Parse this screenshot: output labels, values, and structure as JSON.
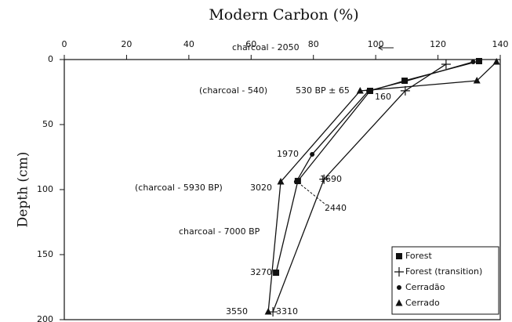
{
  "chart_data": {
    "type": "line",
    "title": "Modern Carbon (%)",
    "y_label": "Depth (cm)",
    "xlim": [
      0,
      140
    ],
    "xticks": [
      0,
      20,
      40,
      60,
      80,
      100,
      120,
      140
    ],
    "ylim": [
      0,
      200
    ],
    "yticks": [
      0,
      50,
      100,
      150,
      200
    ],
    "y_inverted": true,
    "x_axis_position": "top",
    "legend": "lower right",
    "series": [
      {
        "name": "Forest",
        "color": "#111111",
        "marker": "square",
        "x": [
          133.2,
          109.3,
          98.2,
          75,
          68
        ],
        "values": [
          1.2,
          16.3,
          24.1,
          93.4,
          163.9
        ]
      },
      {
        "name": "Forest (transition)",
        "color": "#111111",
        "marker": "plus",
        "x": [
          122.6,
          109.5,
          83.4,
          67
        ],
        "values": [
          3.6,
          24,
          92,
          194
        ]
      },
      {
        "name": "Cerradão",
        "color": "#111111",
        "marker": "circle",
        "x": [
          131.3,
          109.3,
          97.7,
          79.6,
          74.5
        ],
        "values": [
          1.8,
          16.9,
          24.1,
          72.9,
          94
        ]
      },
      {
        "name": "Cerrado",
        "color": "#111111",
        "marker": "triangle",
        "x": [
          138.8,
          132.5,
          95,
          69.5,
          65.5
        ],
        "values": [
          1.8,
          16.3,
          24.1,
          94,
          194
        ]
      }
    ],
    "annotations": [
      "(charcoal - 540)",
      "530 BP ± 65",
      "160",
      "charcoal - 2050",
      "1970",
      "(charcoal - 5930 BP)",
      "3020",
      "1690",
      "2440",
      "charcoal - 7000 BP",
      "3270",
      "3550",
      "3310"
    ]
  }
}
